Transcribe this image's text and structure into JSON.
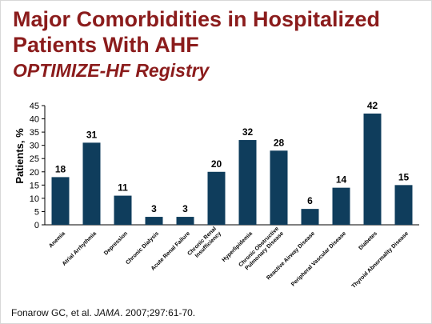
{
  "slide": {
    "title_line1": "Major Comorbidities in Hospitalized",
    "title_line2": "Patients With AHF",
    "subtitle": "OPTIMIZE-HF Registry",
    "citation_prefix": "Fonarow GC, et al.  ",
    "citation_journal": "JAMA",
    "citation_suffix": ". 2007;297:61-70."
  },
  "colors": {
    "title": "#8b1c1c",
    "bar": "#0f3d5c"
  },
  "chart_data": {
    "type": "bar",
    "title": "",
    "xlabel": "",
    "ylabel": "Patients, %",
    "ylim": [
      0,
      45
    ],
    "yticks": [
      0,
      5,
      10,
      15,
      20,
      25,
      30,
      35,
      40,
      45
    ],
    "grid": false,
    "categories": [
      "Anemia",
      "Atrial Arrhythmia",
      "Depression",
      "Chronic Dialysis",
      "Acute Renal Failure",
      "Chronic Renal Insufficiency",
      "Hyperlipidemia",
      "Chronic Obstructive Pulmonary Disease",
      "Reactive Airway Disease",
      "Peripheral Vascular Disease",
      "Diabetes",
      "Thyroid Abnormality Disease"
    ],
    "category_lines": [
      [
        "Anemia"
      ],
      [
        "Atrial Arrhythmia"
      ],
      [
        "Depression"
      ],
      [
        "Chronic Dialysis"
      ],
      [
        "Acute Renal Failure"
      ],
      [
        "Chronic Renal",
        "Insufficiency"
      ],
      [
        "Hyperlipidemia"
      ],
      [
        "Chronic Obstructive",
        "Pulmonary Disease"
      ],
      [
        "Reactive Airway Disease"
      ],
      [
        "Peripheral Vascular Disease"
      ],
      [
        "Diabetes"
      ],
      [
        "Thyroid Abnormality Disease"
      ]
    ],
    "values": [
      18,
      31,
      11,
      3,
      3,
      20,
      32,
      28,
      6,
      14,
      42,
      15
    ],
    "data_labels": [
      "18",
      "31",
      "11",
      "3",
      "3",
      "20",
      "32",
      "28",
      "6",
      "14",
      "42",
      "15"
    ]
  }
}
